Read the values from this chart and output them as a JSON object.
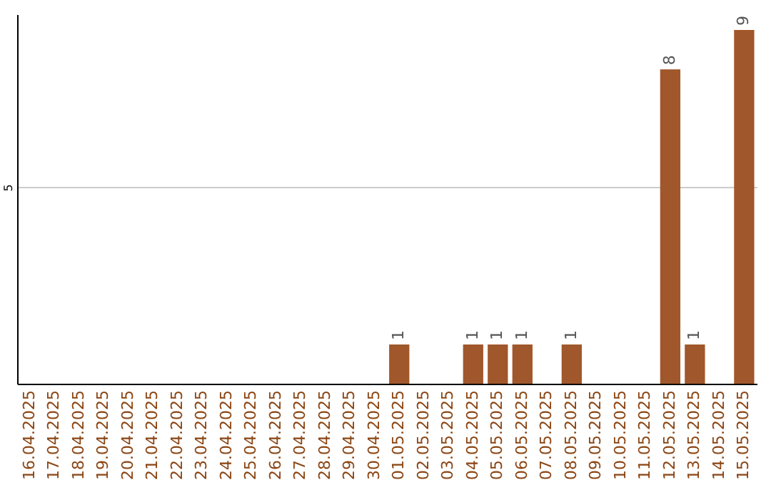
{
  "chart_data": {
    "type": "bar",
    "categories": [
      "16.04.2025",
      "17.04.2025",
      "18.04.2025",
      "19.04.2025",
      "20.04.2025",
      "21.04.2025",
      "22.04.2025",
      "23.04.2025",
      "24.04.2025",
      "25.04.2025",
      "26.04.2025",
      "27.04.2025",
      "28.04.2025",
      "29.04.2025",
      "30.04.2025",
      "01.05.2025",
      "02.05.2025",
      "03.05.2025",
      "04.05.2025",
      "05.05.2025",
      "06.05.2025",
      "07.05.2025",
      "08.05.2025",
      "09.05.2025",
      "10.05.2025",
      "11.05.2025",
      "12.05.2025",
      "13.05.2025",
      "14.05.2025",
      "15.05.2025"
    ],
    "values": [
      null,
      null,
      null,
      null,
      null,
      null,
      null,
      null,
      null,
      null,
      null,
      null,
      null,
      null,
      null,
      1,
      null,
      null,
      1,
      1,
      1,
      null,
      1,
      null,
      null,
      null,
      8,
      1,
      null,
      9
    ],
    "value_labels": [
      null,
      null,
      null,
      null,
      null,
      null,
      null,
      null,
      null,
      null,
      null,
      null,
      null,
      null,
      null,
      "1",
      null,
      null,
      "1",
      "1",
      "1",
      null,
      "1",
      null,
      null,
      null,
      "8",
      "1",
      null,
      "9"
    ],
    "color": "#a0572b",
    "ylim": [
      0,
      9.4
    ],
    "yticks": [
      5
    ],
    "grid": "y"
  }
}
